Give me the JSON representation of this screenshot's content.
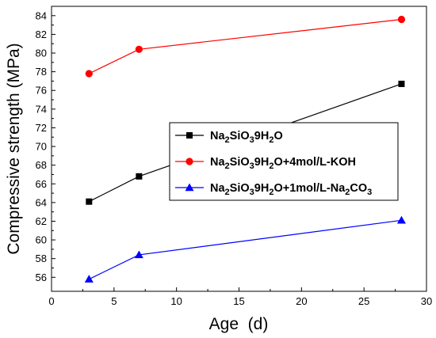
{
  "chart_data": {
    "type": "line",
    "xlabel": "Age  (d)",
    "ylabel": "Compressive strength (MPa)",
    "xlim": [
      0,
      30
    ],
    "ylim": [
      54.5,
      85
    ],
    "x_ticks": [
      0,
      5,
      10,
      15,
      20,
      25,
      30
    ],
    "y_ticks": [
      56,
      58,
      60,
      62,
      64,
      66,
      68,
      70,
      72,
      74,
      76,
      78,
      80,
      82,
      84
    ],
    "grid": false,
    "legend_position": "right-center",
    "series": [
      {
        "name": "Na2SiO39H2O",
        "legend_parts": [
          [
            "Na",
            ""
          ],
          [
            "2",
            "sub"
          ],
          [
            "SiO",
            ""
          ],
          [
            "3",
            "sub"
          ],
          [
            "9H",
            ""
          ],
          [
            "2",
            "sub"
          ],
          [
            "O",
            ""
          ]
        ],
        "color": "#000000",
        "marker": "square",
        "x": [
          3,
          7,
          28
        ],
        "y": [
          64.1,
          66.8,
          76.7
        ]
      },
      {
        "name": "Na2SiO39H2O+4mol/L-KOH",
        "legend_parts": [
          [
            "Na",
            ""
          ],
          [
            "2",
            "sub"
          ],
          [
            "SiO",
            ""
          ],
          [
            "3",
            "sub"
          ],
          [
            "9H",
            ""
          ],
          [
            "2",
            "sub"
          ],
          [
            "O+4mol/L-KOH",
            ""
          ]
        ],
        "color": "#ff0000",
        "marker": "circle",
        "x": [
          3,
          7,
          28
        ],
        "y": [
          77.8,
          80.4,
          83.6
        ]
      },
      {
        "name": "Na2SiO39H2O+1mol/L-Na2CO3",
        "legend_parts": [
          [
            "Na",
            ""
          ],
          [
            "2",
            "sub"
          ],
          [
            "SiO",
            ""
          ],
          [
            "3",
            "sub"
          ],
          [
            "9H",
            ""
          ],
          [
            "2",
            "sub"
          ],
          [
            "O+1mol/L-Na",
            ""
          ],
          [
            "2",
            "sub"
          ],
          [
            "CO",
            ""
          ],
          [
            "3",
            "sub"
          ]
        ],
        "color": "#0000ff",
        "marker": "triangle",
        "x": [
          3,
          7,
          28
        ],
        "y": [
          55.8,
          58.4,
          62.1
        ]
      }
    ]
  }
}
